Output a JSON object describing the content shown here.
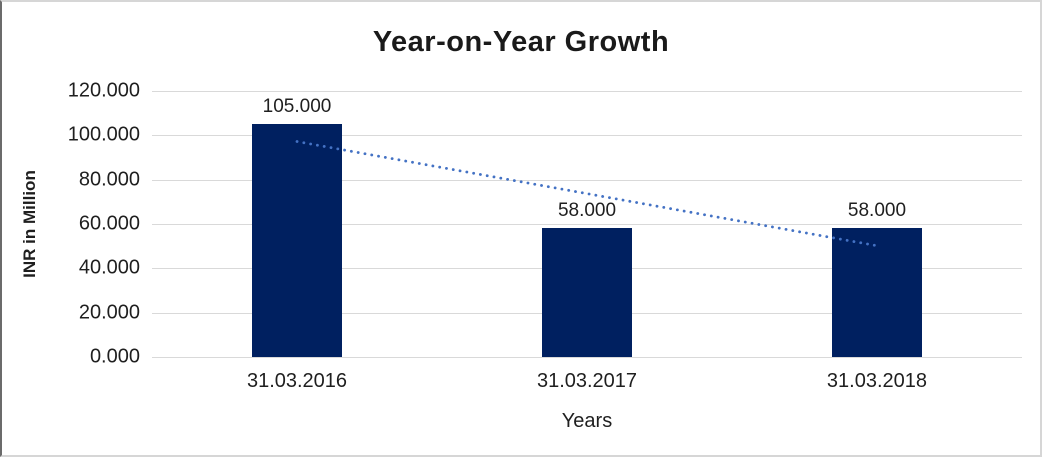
{
  "chart_data": {
    "type": "bar",
    "title": "Year-on-Year Growth",
    "categories": [
      "31.03.2016",
      "31.03.2017",
      "31.03.2018"
    ],
    "values": [
      105,
      58,
      58
    ],
    "value_labels": [
      "105.000",
      "58.000",
      "58.000"
    ],
    "xlabel": "Years",
    "ylabel": "INR in Million",
    "ylim": [
      0,
      120
    ],
    "ytick_labels": [
      "120.000",
      "100.000",
      "80.000",
      "60.000",
      "40.000",
      "20.000",
      "0.000"
    ],
    "grid": true,
    "legend_position": "none",
    "bar_color": "#002060",
    "gridline_color": "#d9d9d9",
    "trendline": {
      "type": "linear",
      "style": "dotted",
      "color": "#4472c4",
      "start_value": 97.2,
      "end_value": 50.2
    }
  }
}
